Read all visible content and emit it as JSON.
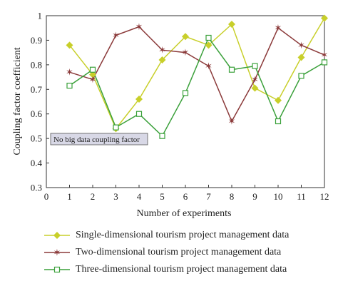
{
  "chart_data": {
    "type": "line",
    "title": "",
    "xlabel": "Number of experiments",
    "ylabel": "Coupling factor coefficient",
    "xlim": [
      0,
      12
    ],
    "ylim": [
      0.3,
      1
    ],
    "xticks": [
      "0",
      "1",
      "2",
      "3",
      "4",
      "5",
      "6",
      "7",
      "8",
      "9",
      "10",
      "11",
      "12"
    ],
    "yticks": [
      "0.3",
      "0.4",
      "0.5",
      "0.6",
      "0.7",
      "0.8",
      "0.9",
      "1"
    ],
    "grid": false,
    "legend_position": "bottom",
    "annotation": "No big data coupling factor",
    "x": [
      1,
      2,
      3,
      4,
      5,
      6,
      7,
      8,
      9,
      10,
      11,
      12
    ],
    "series": [
      {
        "name": "Single-dimensional tourism project management data",
        "color": "#c8cf2a",
        "marker": "diamond",
        "values": [
          0.88,
          0.76,
          0.54,
          0.66,
          0.82,
          0.915,
          0.88,
          0.965,
          0.705,
          0.655,
          0.83,
          0.99
        ]
      },
      {
        "name": "Two-dimensional tourism project management data",
        "color": "#8b3a3a",
        "marker": "star",
        "values": [
          0.77,
          0.74,
          0.92,
          0.955,
          0.86,
          0.85,
          0.795,
          0.57,
          0.74,
          0.95,
          0.88,
          0.84
        ]
      },
      {
        "name": "Three-dimensional tourism project management data",
        "color": "#3aa03a",
        "marker": "square",
        "values": [
          0.715,
          0.78,
          0.545,
          0.6,
          0.51,
          0.685,
          0.91,
          0.78,
          0.795,
          0.57,
          0.755,
          0.81
        ]
      }
    ]
  }
}
